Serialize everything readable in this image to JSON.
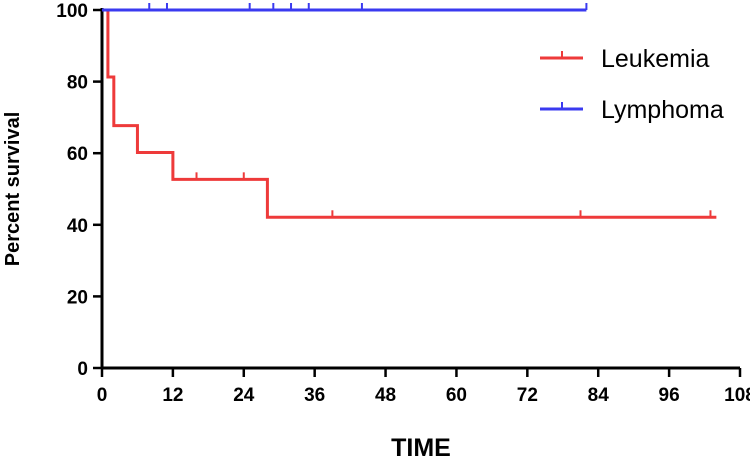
{
  "chart_data": {
    "type": "line",
    "subtype": "kaplan-meier-step",
    "title": "",
    "xlabel": "TIME",
    "ylabel": "Percent survival",
    "xlim": [
      0,
      108
    ],
    "ylim": [
      0,
      100
    ],
    "xticks": [
      "0",
      "12",
      "24",
      "36",
      "48",
      "60",
      "72",
      "84",
      "96",
      "108"
    ],
    "yticks": [
      "0",
      "20",
      "40",
      "60",
      "80",
      "100"
    ],
    "grid": false,
    "legend_position": "top-right",
    "series": [
      {
        "name": "Leukemia",
        "color": "#ee3a3a",
        "steps": [
          [
            0,
            100
          ],
          [
            1,
            81.3
          ],
          [
            2,
            67.7
          ],
          [
            6,
            60.2
          ],
          [
            12,
            52.7
          ],
          [
            28,
            42.1
          ],
          [
            104,
            42.1
          ]
        ],
        "censored": [
          [
            6,
            60.2
          ],
          [
            16,
            52.7
          ],
          [
            24,
            52.7
          ],
          [
            39,
            42.1
          ],
          [
            81,
            42.1
          ],
          [
            103,
            42.1
          ]
        ]
      },
      {
        "name": "Lymphoma",
        "color": "#3a3af0",
        "steps": [
          [
            0,
            100
          ],
          [
            82,
            100
          ]
        ],
        "censored": [
          [
            8,
            100
          ],
          [
            11,
            100
          ],
          [
            25,
            100
          ],
          [
            29,
            100
          ],
          [
            32,
            100
          ],
          [
            35,
            100
          ],
          [
            44,
            100
          ],
          [
            82,
            100
          ]
        ]
      }
    ]
  }
}
